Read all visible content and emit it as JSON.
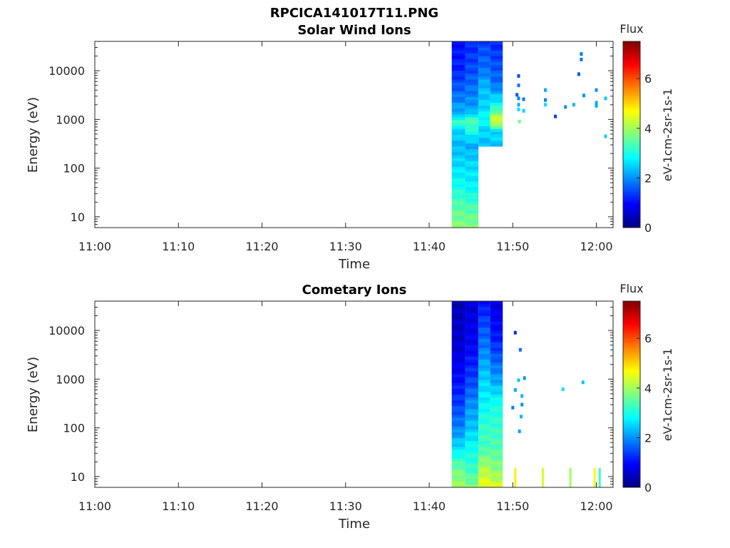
{
  "figure": {
    "title": "RPCICA141017T11.PNG"
  },
  "chart_data": [
    {
      "type": "heatmap",
      "title": "Solar Wind Ions",
      "xlabel": "Time",
      "ylabel": "Energy (eV)",
      "y_scale": "log",
      "xlim": [
        "11:00",
        "12:02"
      ],
      "ylim": [
        6,
        40000
      ],
      "x_ticks": [
        "11:00",
        "11:10",
        "11:20",
        "11:30",
        "11:40",
        "11:50",
        "12:00"
      ],
      "y_ticks": [
        "10",
        "100",
        "1000",
        "10000"
      ],
      "colorbar": {
        "title": "Flux",
        "label": "eV-1cm-2sr-1s-1",
        "range": [
          0,
          7.5
        ],
        "ticks": [
          "0",
          "2",
          "4",
          "6"
        ],
        "colormap": "jet"
      },
      "columns": [
        {
          "start": "11:42.7",
          "end": "11:44.3",
          "emin": 6,
          "emax": 40000,
          "profile": [
            [
              6,
              3.8
            ],
            [
              15,
              3.5
            ],
            [
              40,
              3.0
            ],
            [
              100,
              2.6
            ],
            [
              300,
              2.3
            ],
            [
              700,
              2.6
            ],
            [
              900,
              3.6
            ],
            [
              1100,
              2.4
            ],
            [
              3000,
              1.8
            ],
            [
              10000,
              1.2
            ],
            [
              40000,
              1.0
            ]
          ]
        },
        {
          "start": "11:44.3",
          "end": "11:45.9",
          "emin": 6,
          "emax": 40000,
          "profile": [
            [
              6,
              3.8
            ],
            [
              15,
              3.4
            ],
            [
              40,
              2.8
            ],
            [
              100,
              2.6
            ],
            [
              300,
              2.2
            ],
            [
              800,
              3.4
            ],
            [
              1000,
              3.3
            ],
            [
              1500,
              2.2
            ],
            [
              3000,
              1.9
            ],
            [
              10000,
              1.5
            ],
            [
              40000,
              1.2
            ]
          ]
        },
        {
          "start": "11:45.9",
          "end": "11:47.3",
          "emin": 280,
          "emax": 40000,
          "profile": [
            [
              280,
              2.3
            ],
            [
              700,
              2.6
            ],
            [
              1000,
              2.9
            ],
            [
              2000,
              2.5
            ],
            [
              5000,
              2.3
            ],
            [
              10000,
              1.8
            ],
            [
              40000,
              1.4
            ]
          ]
        },
        {
          "start": "11:47.3",
          "end": "11:48.8",
          "emin": 280,
          "emax": 40000,
          "profile": [
            [
              280,
              2.4
            ],
            [
              600,
              2.6
            ],
            [
              850,
              4.4
            ],
            [
              1100,
              4.2
            ],
            [
              2000,
              2.9
            ],
            [
              5000,
              1.8
            ],
            [
              10000,
              1.6
            ],
            [
              40000,
              1.2
            ]
          ]
        }
      ],
      "points": [
        {
          "t": "11:50.7",
          "e": 7800,
          "v": 1.5
        },
        {
          "t": "11:50.7",
          "e": 5000,
          "v": 1.8
        },
        {
          "t": "11:50.5",
          "e": 3200,
          "v": 1.6
        },
        {
          "t": "11:50.7",
          "e": 2700,
          "v": 1.9
        },
        {
          "t": "11:50.7",
          "e": 2000,
          "v": 2.2
        },
        {
          "t": "11:50.7",
          "e": 1600,
          "v": 2.6
        },
        {
          "t": "11:51.3",
          "e": 2600,
          "v": 1.8
        },
        {
          "t": "11:51.3",
          "e": 1500,
          "v": 2.5
        },
        {
          "t": "11:50.8",
          "e": 900,
          "v": 3.6
        },
        {
          "t": "11:53.9",
          "e": 4000,
          "v": 2.2
        },
        {
          "t": "11:53.9",
          "e": 2500,
          "v": 1.9
        },
        {
          "t": "11:53.9",
          "e": 2000,
          "v": 2.6
        },
        {
          "t": "11:55.1",
          "e": 1150,
          "v": 1.4
        },
        {
          "t": "11:56.3",
          "e": 1800,
          "v": 2.0
        },
        {
          "t": "11:57.3",
          "e": 2000,
          "v": 2.3
        },
        {
          "t": "11:57.9",
          "e": 8500,
          "v": 1.6
        },
        {
          "t": "11:58.2",
          "e": 22000,
          "v": 1.8
        },
        {
          "t": "11:58.2",
          "e": 17000,
          "v": 1.8
        },
        {
          "t": "11:58.5",
          "e": 3100,
          "v": 2.0
        },
        {
          "t": "12:00.0",
          "e": 4000,
          "v": 2.0
        },
        {
          "t": "12:00.0",
          "e": 2200,
          "v": 2.2
        },
        {
          "t": "12:00.0",
          "e": 1900,
          "v": 2.2
        },
        {
          "t": "12:01.1",
          "e": 2700,
          "v": 2.4
        },
        {
          "t": "12:01.1",
          "e": 450,
          "v": 2.5
        }
      ]
    },
    {
      "type": "heatmap",
      "title": "Cometary Ions",
      "xlabel": "Time",
      "ylabel": "Energy (eV)",
      "y_scale": "log",
      "xlim": [
        "11:00",
        "12:02"
      ],
      "ylim": [
        6,
        40000
      ],
      "x_ticks": [
        "11:00",
        "11:10",
        "11:20",
        "11:30",
        "11:40",
        "11:50",
        "12:00"
      ],
      "y_ticks": [
        "10",
        "100",
        "1000",
        "10000"
      ],
      "colorbar": {
        "title": "Flux",
        "label": "eV-1cm-2sr-1s-1",
        "range": [
          0,
          7.5
        ],
        "ticks": [
          "0",
          "2",
          "4",
          "6"
        ],
        "colormap": "jet"
      },
      "columns": [
        {
          "start": "11:42.7",
          "end": "11:44.3",
          "emin": 6,
          "emax": 40000,
          "profile": [
            [
              6,
              4.0
            ],
            [
              15,
              3.6
            ],
            [
              40,
              2.6
            ],
            [
              100,
              1.9
            ],
            [
              300,
              1.4
            ],
            [
              1000,
              1.0
            ],
            [
              5000,
              0.6
            ],
            [
              40000,
              0.4
            ]
          ]
        },
        {
          "start": "11:44.3",
          "end": "11:45.9",
          "emin": 6,
          "emax": 40000,
          "profile": [
            [
              6,
              3.8
            ],
            [
              15,
              3.2
            ],
            [
              40,
              2.9
            ],
            [
              100,
              2.4
            ],
            [
              300,
              2.0
            ],
            [
              1000,
              1.4
            ],
            [
              5000,
              0.9
            ],
            [
              40000,
              0.6
            ]
          ]
        },
        {
          "start": "11:45.9",
          "end": "11:47.3",
          "emin": 6,
          "emax": 40000,
          "profile": [
            [
              6,
              4.6
            ],
            [
              15,
              4.1
            ],
            [
              40,
              3.3
            ],
            [
              100,
              3.2
            ],
            [
              300,
              2.8
            ],
            [
              1000,
              2.5
            ],
            [
              5000,
              1.8
            ],
            [
              10000,
              1.6
            ],
            [
              40000,
              1.0
            ]
          ]
        },
        {
          "start": "11:47.3",
          "end": "11:48.8",
          "emin": 6,
          "emax": 40000,
          "profile": [
            [
              6,
              4.4
            ],
            [
              15,
              3.8
            ],
            [
              40,
              3.4
            ],
            [
              100,
              3.2
            ],
            [
              300,
              3.0
            ],
            [
              1000,
              2.1
            ],
            [
              5000,
              1.3
            ],
            [
              10000,
              1.0
            ],
            [
              40000,
              0.7
            ]
          ]
        }
      ],
      "points": [
        {
          "t": "11:50.3",
          "e": 9000,
          "v": 1.2
        },
        {
          "t": "11:50.9",
          "e": 4000,
          "v": 1.8
        },
        {
          "t": "11:50.7",
          "e": 950,
          "v": 2.4
        },
        {
          "t": "11:51.4",
          "e": 1050,
          "v": 2.0
        },
        {
          "t": "11:50.3",
          "e": 600,
          "v": 2.2
        },
        {
          "t": "11:51.1",
          "e": 450,
          "v": 2.3
        },
        {
          "t": "11:51.1",
          "e": 300,
          "v": 2.0
        },
        {
          "t": "11:50.0",
          "e": 260,
          "v": 1.9
        },
        {
          "t": "11:51.0",
          "e": 170,
          "v": 2.3
        },
        {
          "t": "11:50.8",
          "e": 85,
          "v": 2.1
        },
        {
          "t": "11:56.0",
          "e": 620,
          "v": 2.6
        },
        {
          "t": "11:58.4",
          "e": 860,
          "v": 2.4
        }
      ],
      "low_energy_spikes": [
        {
          "t": "11:50.3",
          "v": 4.8
        },
        {
          "t": "11:53.6",
          "v": 4.4
        },
        {
          "t": "11:56.9",
          "v": 4.0
        },
        {
          "t": "11:59.8",
          "v": 4.6
        },
        {
          "t": "12:00.4",
          "v": 3.2
        }
      ]
    }
  ]
}
